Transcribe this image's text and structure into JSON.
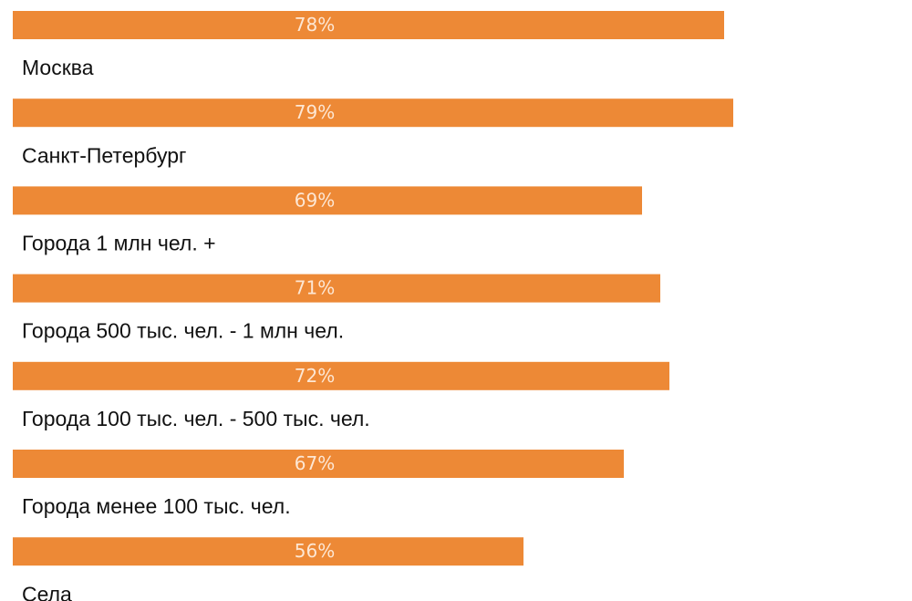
{
  "chart_data": {
    "type": "bar",
    "orientation": "horizontal",
    "color": "#ed8936",
    "categories": [
      "Москва",
      "Санкт-Петербург",
      "Города 1 млн чел. +",
      "Города 500 тыс. чел. - 1 млн чел.",
      "Города 100 тыс. чел. - 500 тыс. чел.",
      "Города менее 100 тыс. чел.",
      "Села"
    ],
    "values": [
      78,
      79,
      69,
      71,
      72,
      67,
      56
    ],
    "value_labels": [
      "78%",
      "79%",
      "69%",
      "71%",
      "72%",
      "67%",
      "56%"
    ],
    "xlim": [
      0,
      100
    ]
  }
}
